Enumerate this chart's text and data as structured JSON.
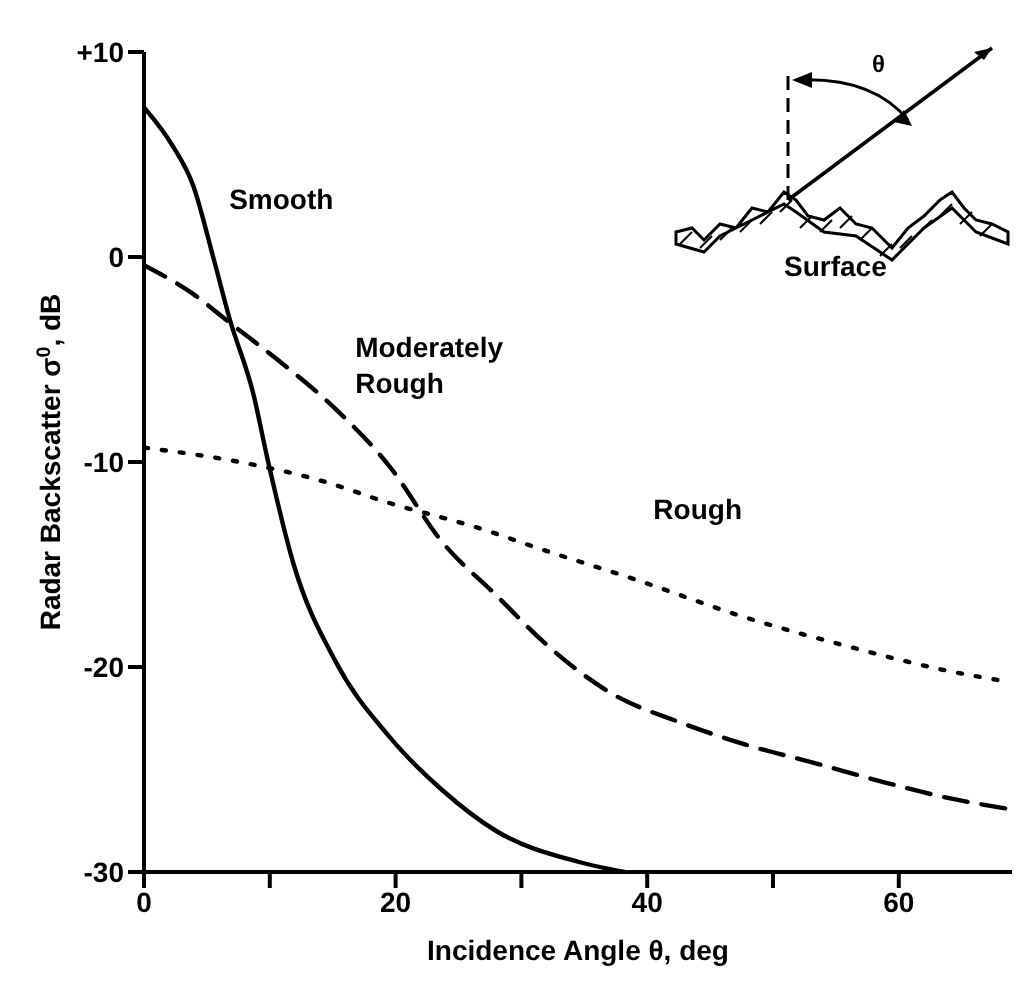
{
  "chart_data": {
    "type": "line",
    "xlabel": "Incidence Angle θ, deg",
    "ylabel": "Radar Backscatter σ$^{0}$, dB",
    "xlim": [
      0,
      69
    ],
    "xticks": [
      0,
      {
        "value": 10,
        "label": null
      },
      20,
      {
        "value": 30,
        "label": null
      },
      40,
      {
        "value": 50,
        "label": null
      },
      60
    ],
    "ylim": [
      -30,
      10
    ],
    "yticks": [
      {
        "value": 10,
        "label": "+10"
      },
      0,
      -10,
      -20,
      -30
    ],
    "grid": false,
    "legend": false,
    "marker": "none",
    "annotations": [
      "θ",
      "Surface"
    ],
    "series": [
      {
        "name": "Smooth",
        "color": "#000000",
        "line_style": "solid",
        "x": [
          0,
          2.3,
          3.9,
          5.5,
          6.8,
          8.7,
          9.8,
          11.9,
          15.2,
          19.5,
          23.7,
          28,
          34.5,
          38.2
        ],
        "values": [
          7.3,
          5.4,
          3.5,
          0,
          -3,
          -6.7,
          -9.8,
          -15,
          -19.7,
          -23.4,
          -26,
          -28,
          -29.5,
          -30
        ]
      },
      {
        "name": "Moderately Rough",
        "color": "#000000",
        "line_style": "dashed",
        "x": [
          0,
          3.9,
          6.8,
          10.8,
          15.2,
          19.5,
          23.7,
          28,
          31.8,
          37.2,
          42.6,
          47.9,
          53.4,
          58.7,
          64,
          68.5
        ],
        "values": [
          -0.4,
          -1.8,
          -3.2,
          -5.1,
          -7.4,
          -10.2,
          -13.9,
          -16.5,
          -18.8,
          -21.3,
          -22.7,
          -23.8,
          -24.7,
          -25.6,
          -26.4,
          -26.9
        ]
      },
      {
        "name": "Rough",
        "color": "#000000",
        "line_style": "dotted",
        "x": [
          0,
          7.6,
          14,
          19.5,
          26.5,
          31.8,
          38.9,
          47.9,
          56,
          64,
          68.5
        ],
        "values": [
          -9.3,
          -10,
          -10.9,
          -12,
          -13.2,
          -14.3,
          -15.7,
          -17.6,
          -19,
          -20.2,
          -20.7
        ]
      }
    ]
  }
}
